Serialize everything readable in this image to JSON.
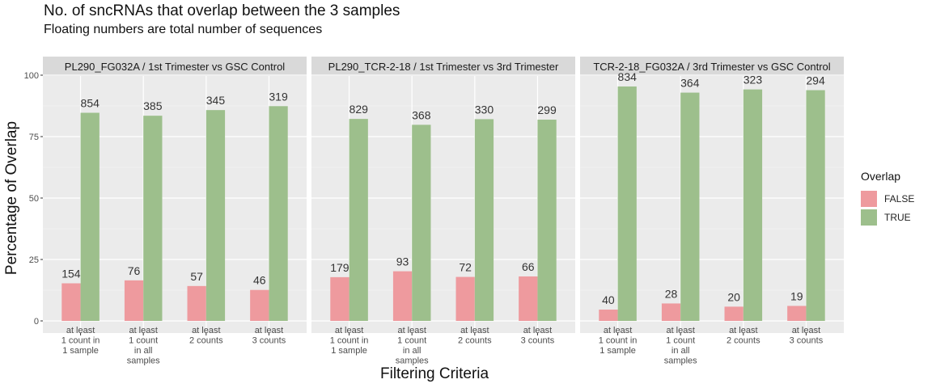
{
  "chart_data": {
    "type": "bar",
    "title": "No. of sncRNAs that overlap between the 3 samples",
    "subtitle": "Floating numbers are total number of sequences",
    "xlabel": "Filtering Criteria",
    "ylabel": "Percentage of Overlap",
    "ylim": [
      0,
      100
    ],
    "yticks": [
      0,
      25,
      50,
      75,
      100
    ],
    "grid": true,
    "categories": [
      "at least 1 count in 1 sample",
      "at least 1 count in all samples",
      "at least 2 counts",
      "at least 3 counts"
    ],
    "category_lines": [
      [
        "at least",
        "1 count in",
        "1 sample"
      ],
      [
        "at least",
        "1 count",
        "in all",
        "samples"
      ],
      [
        "at least",
        "2 counts"
      ],
      [
        "at least",
        "3 counts"
      ]
    ],
    "legend": {
      "title": "Overlap",
      "position": "right",
      "entries": [
        {
          "label": "FALSE",
          "color": "#ee9a9e"
        },
        {
          "label": "TRUE",
          "color": "#9dbf8c"
        }
      ]
    },
    "panels": [
      {
        "strip": "PL290_FG032A / 1st Trimester vs GSC Control",
        "series": [
          {
            "name": "FALSE",
            "values": [
              15.3,
              16.5,
              14.2,
              12.6
            ],
            "labels": [
              "154",
              "76",
              "57",
              "46"
            ]
          },
          {
            "name": "TRUE",
            "values": [
              84.7,
              83.5,
              85.8,
              87.4
            ],
            "labels": [
              "854",
              "385",
              "345",
              "319"
            ]
          }
        ]
      },
      {
        "strip": "PL290_TCR-2-18 / 1st Trimester vs 3rd Trimester",
        "series": [
          {
            "name": "FALSE",
            "values": [
              17.8,
              20.2,
              17.9,
              18.1
            ],
            "labels": [
              "179",
              "93",
              "72",
              "66"
            ]
          },
          {
            "name": "TRUE",
            "values": [
              82.2,
              79.8,
              82.1,
              81.9
            ],
            "labels": [
              "829",
              "368",
              "330",
              "299"
            ]
          }
        ]
      },
      {
        "strip": "TCR-2-18_FG032A / 3rd Trimester vs GSC Control",
        "series": [
          {
            "name": "FALSE",
            "values": [
              4.6,
              7.1,
              5.8,
              6.1
            ],
            "labels": [
              "40",
              "28",
              "20",
              "19"
            ]
          },
          {
            "name": "TRUE",
            "values": [
              95.4,
              92.9,
              94.2,
              93.9
            ],
            "labels": [
              "834",
              "364",
              "323",
              "294"
            ]
          }
        ]
      }
    ]
  }
}
